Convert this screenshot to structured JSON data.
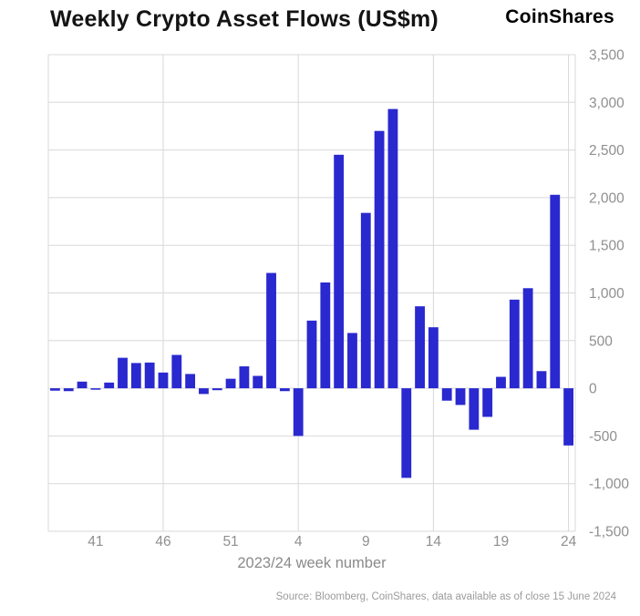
{
  "header": {
    "title": "Weekly Crypto Asset Flows (US$m)",
    "logo": "CoinShares"
  },
  "footer": {
    "source": "Source: Bloomberg, CoinShares, data available as of close 15 June 2024"
  },
  "chart_data": {
    "type": "bar",
    "title": "Weekly Crypto Asset Flows (US$m)",
    "xlabel": "2023/24 week number",
    "ylabel": "",
    "ylim": [
      -1500,
      3500
    ],
    "y_tick_values": [
      3500,
      3000,
      2500,
      2000,
      1500,
      1000,
      500,
      0,
      -500,
      -1000,
      -1500
    ],
    "y_tick_labels": [
      "3,500",
      "3,000",
      "2,500",
      "2,000",
      "1,500",
      "1,000",
      "500",
      "0",
      "-500",
      "-1,000",
      "-1,500"
    ],
    "y_axis_side": "right",
    "grid": true,
    "legend": "none",
    "categories": [
      "38",
      "39",
      "40",
      "41",
      "42",
      "43",
      "44",
      "45",
      "46",
      "47",
      "48",
      "49",
      "50",
      "51",
      "52",
      "1",
      "2",
      "3",
      "4",
      "5",
      "6",
      "7",
      "8",
      "9",
      "10",
      "11",
      "12",
      "13",
      "14",
      "15",
      "16",
      "17",
      "18",
      "19",
      "20",
      "21",
      "22",
      "23",
      "24"
    ],
    "values": [
      -25,
      -30,
      70,
      -15,
      60,
      320,
      265,
      270,
      165,
      350,
      150,
      -60,
      -20,
      100,
      230,
      130,
      1210,
      -30,
      -500,
      710,
      1110,
      2450,
      580,
      1840,
      2700,
      2930,
      -940,
      860,
      640,
      -130,
      -175,
      -435,
      -300,
      120,
      930,
      1050,
      180,
      2030,
      -600
    ],
    "x_tick_labels": [
      "41",
      "46",
      "51",
      "4",
      "9",
      "14",
      "19",
      "24"
    ],
    "v_gridline_weeks": [
      "46",
      "4",
      "14",
      "24"
    ],
    "bar_color": "#2a28cf",
    "grid_color": "#d8d8d8",
    "tick_color": "#8f8f8f"
  }
}
